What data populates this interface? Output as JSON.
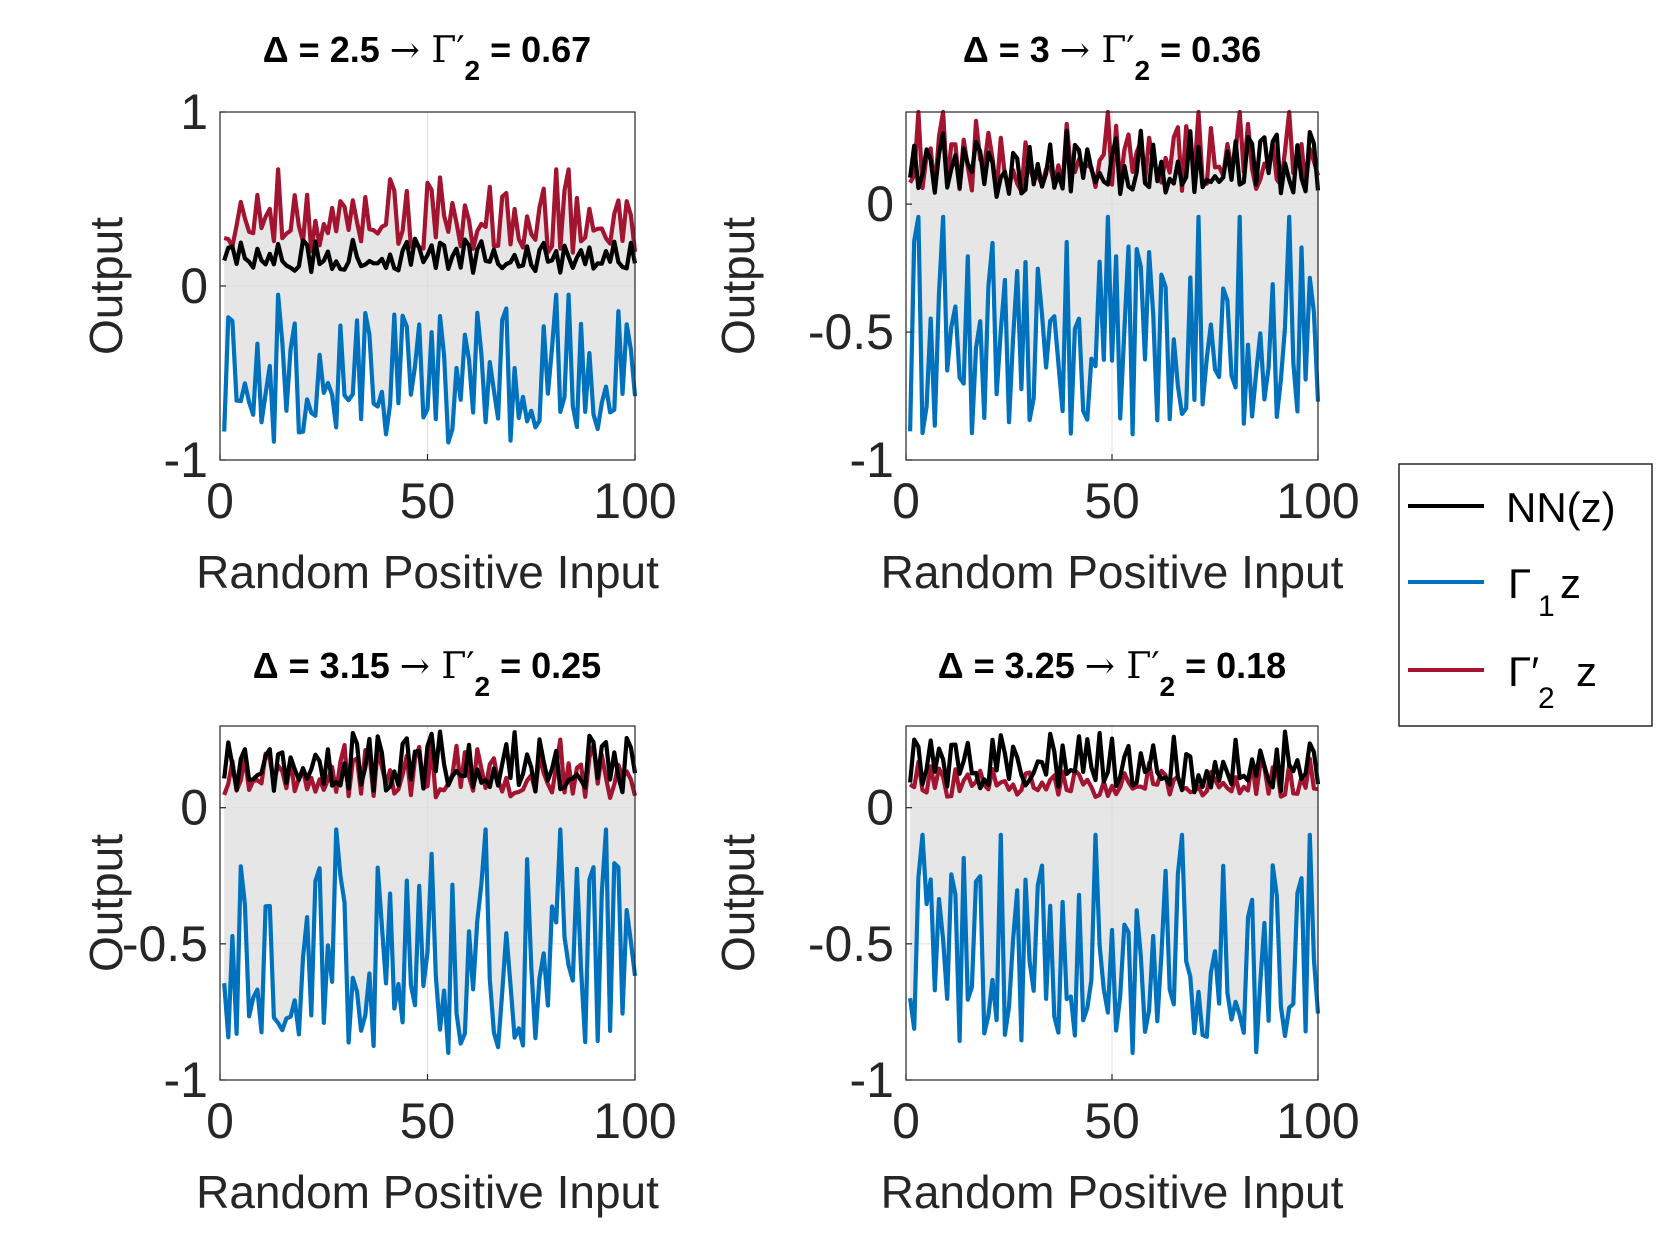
{
  "colors": {
    "nn": "#000000",
    "gamma1": "#0072BD",
    "gamma2": "#A2142F",
    "fill": "#E6E6E6",
    "axis": "#262626",
    "grid": "#DFDFDF"
  },
  "legend": {
    "nn_label": "NN(z)",
    "gamma1_label": "Γ",
    "gamma1_sub": "1",
    "gamma1_z": "z",
    "gamma2_label": "Γ′",
    "gamma2_sub": "2",
    "gamma2_z": "z"
  },
  "chart_data": [
    {
      "type": "line",
      "title": {
        "delta_text": "Δ = 2.5",
        "arrow": "→",
        "gamma": "Γ′",
        "sub": "2",
        "value_text": "= 0.67"
      },
      "xlabel": "Random Positive Input",
      "ylabel": "Output",
      "xlim": [
        0,
        100
      ],
      "ylim": [
        -1,
        1
      ],
      "xticks": [
        0,
        50,
        100
      ],
      "xtick_labels": [
        "0",
        "50",
        "100"
      ],
      "yticks": [
        -1,
        0,
        1
      ],
      "ytick_labels": [
        "-1",
        "0",
        "1"
      ],
      "grid": true,
      "series": [
        {
          "name": "NN(z)",
          "key": "nn",
          "seed": 11,
          "min": 0.07,
          "max": 0.29,
          "spikes": []
        },
        {
          "name": "Γ1 z",
          "key": "gamma1",
          "seed": 12,
          "min": -0.92,
          "max": -0.05,
          "spikes": [
            13,
            80,
            83
          ]
        },
        {
          "name": "Γ′2 z",
          "key": "gamma2",
          "seed": 13,
          "min": 0.18,
          "max": 0.67,
          "spikes": [
            13,
            80,
            83
          ]
        }
      ]
    },
    {
      "type": "line",
      "title": {
        "delta_text": "Δ = 3",
        "arrow": "→",
        "gamma": "Γ′",
        "sub": "2",
        "value_text": "= 0.36"
      },
      "xlabel": "Random Positive Input",
      "ylabel": "Output",
      "xlim": [
        0,
        100
      ],
      "ylim": [
        -1,
        0.36
      ],
      "xticks": [
        0,
        50,
        100
      ],
      "xtick_labels": [
        "0",
        "50",
        "100"
      ],
      "yticks": [
        -1,
        -0.5,
        0
      ],
      "ytick_labels": [
        "-1",
        "-0.5",
        "0"
      ],
      "grid": true,
      "series": [
        {
          "name": "NN(z)",
          "key": "nn",
          "seed": 21,
          "min": 0.02,
          "max": 0.31,
          "spikes": []
        },
        {
          "name": "Γ1 z",
          "key": "gamma1",
          "seed": 22,
          "min": -0.92,
          "max": -0.05,
          "spikes": [
            2,
            8,
            48,
            70,
            80,
            92
          ]
        },
        {
          "name": "Γ′2 z",
          "key": "gamma2",
          "seed": 23,
          "min": 0.04,
          "max": 0.36,
          "spikes": [
            2,
            8,
            48,
            70,
            80,
            92
          ]
        }
      ]
    },
    {
      "type": "line",
      "title": {
        "delta_text": "Δ = 3.15",
        "arrow": "→",
        "gamma": "Γ′",
        "sub": "2",
        "value_text": "= 0.25"
      },
      "xlabel": "Random Positive Input",
      "ylabel": "Output",
      "xlim": [
        0,
        100
      ],
      "ylim": [
        -1,
        0.3
      ],
      "xticks": [
        0,
        50,
        100
      ],
      "xtick_labels": [
        "0",
        "50",
        "100"
      ],
      "yticks": [
        -1,
        -0.5,
        0
      ],
      "ytick_labels": [
        "-1",
        "-0.5",
        "0"
      ],
      "grid": true,
      "series": [
        {
          "name": "NN(z)",
          "key": "nn",
          "seed": 31,
          "min": 0.05,
          "max": 0.3,
          "spikes": []
        },
        {
          "name": "Γ1 z",
          "key": "gamma1",
          "seed": 32,
          "min": -0.92,
          "max": -0.08,
          "spikes": [
            27,
            63,
            81,
            92
          ]
        },
        {
          "name": "Γ′2 z",
          "key": "gamma2",
          "seed": 33,
          "min": 0.03,
          "max": 0.25,
          "spikes": [
            81
          ]
        }
      ]
    },
    {
      "type": "line",
      "title": {
        "delta_text": "Δ = 3.25",
        "arrow": "→",
        "gamma": "Γ′",
        "sub": "2",
        "value_text": "= 0.18"
      },
      "xlabel": "Random Positive Input",
      "ylabel": "Output",
      "xlim": [
        0,
        100
      ],
      "ylim": [
        -1,
        0.3
      ],
      "xticks": [
        0,
        50,
        100
      ],
      "xtick_labels": [
        "0",
        "50",
        "100"
      ],
      "yticks": [
        -1,
        -0.5,
        0
      ],
      "ytick_labels": [
        "-1",
        "-0.5",
        "0"
      ],
      "grid": true,
      "series": [
        {
          "name": "NN(z)",
          "key": "nn",
          "seed": 41,
          "min": 0.05,
          "max": 0.3,
          "spikes": []
        },
        {
          "name": "Γ1 z",
          "key": "gamma1",
          "seed": 42,
          "min": -0.92,
          "max": -0.1,
          "spikes": [
            3,
            22,
            45,
            66,
            97
          ]
        },
        {
          "name": "Γ′2 z",
          "key": "gamma2",
          "seed": 43,
          "min": 0.03,
          "max": 0.18,
          "spikes": [
            97
          ]
        }
      ]
    }
  ]
}
